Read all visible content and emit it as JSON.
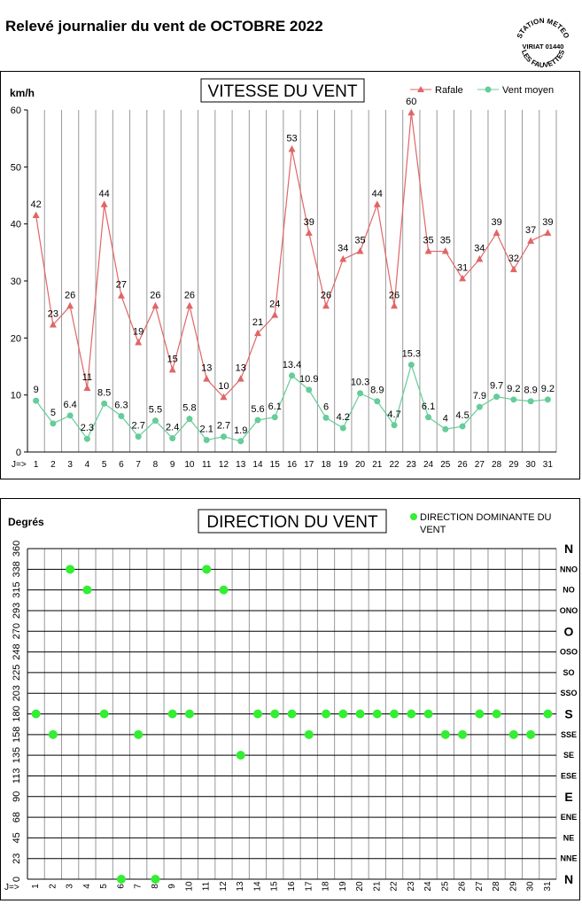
{
  "page": {
    "title": "Relevé journalier du vent de OCTOBRE 2022",
    "stamp_lines": [
      "STATION METEO",
      "VIRIAT 01440",
      "LES FAUVETTES"
    ]
  },
  "chart_data": [
    {
      "type": "line",
      "title": "VITESSE DU VENT",
      "ylabel": "km/h",
      "x_prefix": "J=>",
      "ylim": [
        0,
        60
      ],
      "y_ticks": [
        0,
        10,
        20,
        30,
        40,
        50,
        60
      ],
      "categories": [
        "1",
        "2",
        "3",
        "4",
        "5",
        "6",
        "7",
        "8",
        "9",
        "10",
        "11",
        "12",
        "13",
        "14",
        "15",
        "16",
        "17",
        "18",
        "19",
        "20",
        "21",
        "22",
        "23",
        "24",
        "25",
        "26",
        "27",
        "28",
        "29",
        "30",
        "31"
      ],
      "grid": "vertical",
      "legend": "top-right",
      "series": [
        {
          "name": "Rafale",
          "color": "#e06666",
          "marker": "triangle",
          "values": [
            42,
            23,
            26,
            11,
            44,
            27,
            19,
            26,
            15,
            26,
            13,
            10,
            13,
            21,
            24,
            53,
            39,
            26,
            34,
            35,
            44,
            26,
            60,
            35,
            35,
            31,
            34,
            39,
            32,
            37,
            39
          ],
          "plot_values": [
            41.5,
            22.3,
            25.6,
            11.2,
            43.4,
            27.4,
            19.2,
            25.6,
            14.4,
            25.6,
            12.8,
            9.6,
            12.8,
            20.8,
            24.0,
            53.1,
            38.4,
            25.6,
            33.8,
            35.2,
            43.4,
            25.6,
            59.5,
            35.2,
            35.2,
            30.4,
            33.8,
            38.4,
            32.0,
            37.0,
            38.4
          ]
        },
        {
          "name": "Vent moyen",
          "color": "#66cc99",
          "marker": "circle",
          "values": [
            9,
            5,
            6.4,
            2.3,
            8.5,
            6.3,
            2.7,
            5.5,
            2.4,
            5.8,
            2.1,
            2.7,
            1.9,
            5.6,
            6.1,
            13.4,
            10.9,
            6,
            4.2,
            10.3,
            8.9,
            4.7,
            15.3,
            6.1,
            4,
            4.5,
            7.9,
            9.7,
            9.2,
            8.9,
            9.2
          ],
          "labels": [
            "9",
            "5",
            "6.4",
            "2.3",
            "8.5",
            "6.3",
            "2.7",
            "5.5",
            "2.4",
            "5.8",
            "2.1",
            "2.7",
            "1.9",
            "5.6",
            "6.1",
            "13.4",
            "10.9",
            "6",
            "4.2",
            "10.3",
            "8.9",
            "4.7",
            "15.3",
            "6.1",
            "4",
            "4.5",
            "7.9",
            "9.7",
            "9.2",
            "8.9",
            "9.2"
          ]
        }
      ]
    },
    {
      "type": "scatter",
      "title": "DIRECTION DU VENT",
      "ylabel": "Degrés",
      "x_prefix": "J=>",
      "ylim": [
        0,
        360
      ],
      "y_ticks": [
        "0",
        "23",
        "45",
        "68",
        "90",
        "113",
        "135",
        "158",
        "180",
        "203",
        "225",
        "248",
        "270",
        "293",
        "315",
        "338",
        "360"
      ],
      "right_ticks": [
        "N",
        "NNE",
        "NE",
        "ENE",
        "E",
        "ESE",
        "SE",
        "SSE",
        "S",
        "SSO",
        "SO",
        "OSO",
        "O",
        "ONO",
        "NO",
        "NNO",
        "N"
      ],
      "categories": [
        "1",
        "2",
        "3",
        "4",
        "5",
        "6",
        "7",
        "8",
        "9",
        "10",
        "11",
        "12",
        "13",
        "14",
        "15",
        "16",
        "17",
        "18",
        "19",
        "20",
        "21",
        "22",
        "23",
        "24",
        "25",
        "26",
        "27",
        "28",
        "29",
        "30",
        "31"
      ],
      "grid": "both",
      "legend": "top-right",
      "series": [
        {
          "name": "DIRECTION DOMINANTE DU VENT",
          "color": "#33ee33",
          "values": [
            180,
            157.5,
            337.5,
            315,
            180,
            0,
            157.5,
            0,
            180,
            180,
            337.5,
            315,
            135,
            180,
            180,
            180,
            157.5,
            180,
            180,
            180,
            180,
            180,
            180,
            180,
            157.5,
            157.5,
            180,
            180,
            157.5,
            157.5,
            180
          ]
        }
      ]
    }
  ]
}
